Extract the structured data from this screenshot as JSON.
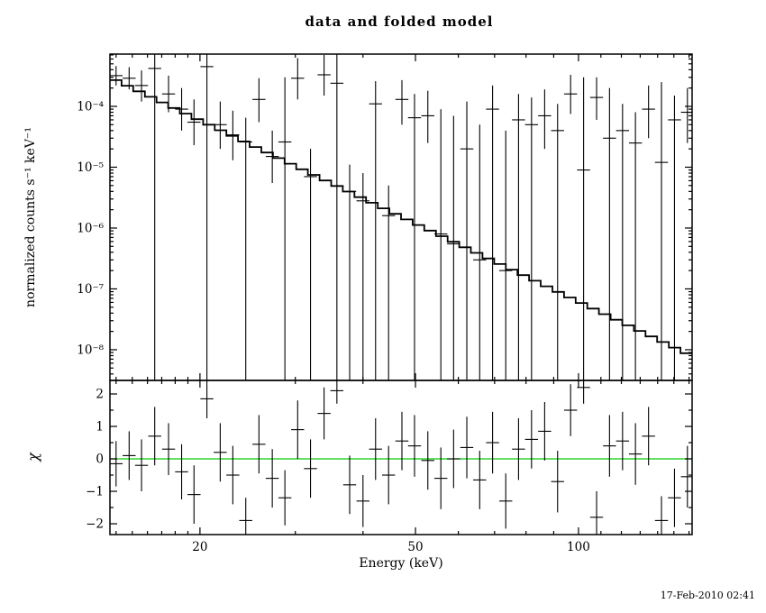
{
  "chart_data": {
    "type": "line",
    "title": "data and folded model",
    "xlabel": "Energy (keV)",
    "ylabel": "normalized counts s⁻¹ keV⁻¹",
    "ylabel2": "χ",
    "timestamp": "17-Feb-2010 02:41",
    "x_scale": "log",
    "y_scale": "log",
    "x_range": [
      13.64,
      162.1
    ],
    "y_range": [
      3.13e-09,
      0.000723
    ],
    "chi_range": [
      -2.333,
      2.417
    ],
    "grid": false,
    "legend": "none",
    "foreground": "#000000",
    "background": "#ffffff",
    "zero_line_color": "#00cc00",
    "x_ticks": {
      "major": [
        20,
        50,
        100
      ],
      "labels": [
        "20",
        "50",
        "100"
      ],
      "minor": [
        14,
        15,
        16,
        17,
        18,
        19,
        30,
        40,
        60,
        70,
        80,
        90,
        110,
        120,
        130,
        140,
        150,
        160
      ]
    },
    "y_ticks": {
      "major": [
        0.0001,
        1e-05,
        1e-06,
        1e-07,
        1e-08
      ],
      "labels": [
        "10⁻⁴",
        "10⁻⁵",
        "10⁻⁶",
        "10⁻⁷",
        "10⁻⁸"
      ]
    },
    "chi_ticks": {
      "major": [
        -2,
        -1,
        0,
        1,
        2
      ],
      "labels": [
        "−2",
        "−1",
        "0",
        "1",
        "2"
      ],
      "minor": [
        -1.5,
        -0.5,
        0.5,
        1.5
      ]
    },
    "model": {
      "type": "powerlaw",
      "ref_energy": 15,
      "norm": 0.0002,
      "index": -4.26,
      "bins": 50
    },
    "bin_half_width_factor": 1.028,
    "points": {
      "columns": [
        "energy_keV",
        "rate",
        "err_lo",
        "err_hi"
      ],
      "rows": [
        [
          14.0,
          0.00032,
          0.00022,
          0.00046
        ],
        [
          14.8,
          0.00029,
          0.00019,
          0.00044
        ],
        [
          15.6,
          0.00022,
          0.00012,
          0.00039
        ],
        [
          16.5,
          0.00042,
          1e-09,
          0.001
        ],
        [
          17.5,
          0.00016,
          8e-05,
          0.00032
        ],
        [
          18.5,
          9e-05,
          4e-05,
          0.0002
        ],
        [
          19.5,
          5.5e-05,
          2.3e-05,
          0.00013
        ],
        [
          20.6,
          0.00045,
          1e-09,
          0.001
        ],
        [
          21.8,
          5e-05,
          2e-05,
          0.00012
        ],
        [
          23.0,
          3.4e-05,
          1.3e-05,
          8.5e-05
        ],
        [
          24.3,
          2.6e-05,
          1e-09,
          6.5e-05
        ],
        [
          25.7,
          0.00013,
          5.5e-05,
          0.00029
        ],
        [
          27.2,
          1.5e-05,
          5.5e-06,
          4e-05
        ],
        [
          28.7,
          2.6e-05,
          1e-09,
          0.0003
        ],
        [
          30.3,
          0.00029,
          0.00013,
          0.00062
        ],
        [
          32.0,
          7e-06,
          1e-09,
          2e-05
        ],
        [
          33.9,
          0.00033,
          0.00015,
          0.0007
        ],
        [
          35.8,
          0.00024,
          1e-09,
          0.001
        ],
        [
          37.8,
          4e-06,
          1e-09,
          1.1e-05
        ],
        [
          40.0,
          2.8e-06,
          1e-09,
          8e-06
        ],
        [
          42.2,
          0.00011,
          1e-09,
          0.00026
        ],
        [
          44.6,
          1.6e-06,
          1e-09,
          5e-06
        ],
        [
          47.2,
          0.00013,
          5e-05,
          0.00027
        ],
        [
          49.8,
          6.5e-05,
          1e-09,
          0.00016
        ],
        [
          52.7,
          7e-05,
          2.5e-05,
          0.00018
        ],
        [
          55.7,
          8e-07,
          1e-09,
          9e-05
        ],
        [
          58.8,
          5.5e-07,
          1e-09,
          7e-05
        ],
        [
          62.2,
          2e-05,
          1e-09,
          0.00012
        ],
        [
          65.7,
          3e-07,
          1e-09,
          5e-05
        ],
        [
          69.4,
          9e-05,
          1e-09,
          0.00022
        ],
        [
          73.4,
          2e-07,
          1e-09,
          4e-05
        ],
        [
          77.5,
          6e-05,
          1e-09,
          0.00016
        ],
        [
          81.9,
          5e-05,
          1e-09,
          0.00014
        ],
        [
          86.6,
          7e-05,
          2e-05,
          0.00019
        ],
        [
          91.5,
          4e-05,
          1e-09,
          0.00011
        ],
        [
          96.7,
          0.00016,
          7.5e-05,
          0.00033
        ],
        [
          102.2,
          9e-06,
          1e-09,
          0.0003
        ],
        [
          108.0,
          0.00014,
          6e-05,
          0.0003
        ],
        [
          114.1,
          3e-05,
          1e-09,
          0.0002
        ],
        [
          120.6,
          4e-05,
          1e-09,
          0.00011
        ],
        [
          127.4,
          2.5e-05,
          1e-09,
          8e-05
        ],
        [
          134.7,
          9e-05,
          3e-05,
          0.00022
        ],
        [
          142.3,
          1.2e-05,
          1e-09,
          0.00025
        ],
        [
          150.4,
          6e-05,
          1e-09,
          0.00015
        ],
        [
          158.9,
          8e-05,
          2.5e-05,
          0.0002
        ]
      ]
    },
    "chi_points": {
      "columns": [
        "energy_keV",
        "chi",
        "err"
      ],
      "rows": [
        [
          14.0,
          -0.15,
          0.7
        ],
        [
          14.8,
          0.1,
          0.75
        ],
        [
          15.6,
          -0.2,
          0.8
        ],
        [
          16.5,
          0.7,
          0.9
        ],
        [
          17.5,
          0.3,
          0.8
        ],
        [
          18.5,
          -0.4,
          0.85
        ],
        [
          19.5,
          -1.1,
          0.9
        ],
        [
          20.6,
          1.85,
          0.6
        ],
        [
          21.8,
          0.2,
          0.9
        ],
        [
          23.0,
          -0.5,
          0.9
        ],
        [
          24.3,
          -1.9,
          0.7
        ],
        [
          25.7,
          0.45,
          0.9
        ],
        [
          27.2,
          -0.6,
          0.9
        ],
        [
          28.7,
          -1.2,
          0.85
        ],
        [
          30.3,
          0.9,
          0.9
        ],
        [
          32.0,
          -0.3,
          0.9
        ],
        [
          33.9,
          1.4,
          0.8
        ],
        [
          35.8,
          2.1,
          0.4
        ],
        [
          37.8,
          -0.8,
          0.9
        ],
        [
          40.0,
          -1.3,
          0.8
        ],
        [
          42.2,
          0.3,
          0.95
        ],
        [
          44.6,
          -0.5,
          0.9
        ],
        [
          47.2,
          0.55,
          0.9
        ],
        [
          49.8,
          0.4,
          0.95
        ],
        [
          52.7,
          -0.05,
          0.9
        ],
        [
          55.7,
          -0.6,
          0.95
        ],
        [
          58.8,
          0.0,
          0.9
        ],
        [
          62.2,
          0.35,
          0.95
        ],
        [
          65.7,
          -0.65,
          0.9
        ],
        [
          69.4,
          0.5,
          0.95
        ],
        [
          73.4,
          -1.3,
          0.85
        ],
        [
          77.5,
          0.3,
          0.95
        ],
        [
          81.9,
          0.6,
          0.9
        ],
        [
          86.6,
          0.85,
          0.9
        ],
        [
          91.5,
          -0.7,
          0.95
        ],
        [
          96.7,
          1.5,
          0.8
        ],
        [
          102.2,
          2.2,
          0.5
        ],
        [
          108.0,
          -1.8,
          0.8
        ],
        [
          114.1,
          0.4,
          0.95
        ],
        [
          120.6,
          0.55,
          0.9
        ],
        [
          127.4,
          0.15,
          0.95
        ],
        [
          134.7,
          0.7,
          0.9
        ],
        [
          142.3,
          -1.9,
          0.75
        ],
        [
          150.4,
          -1.2,
          0.9
        ],
        [
          158.9,
          -0.55,
          0.95
        ]
      ]
    }
  }
}
